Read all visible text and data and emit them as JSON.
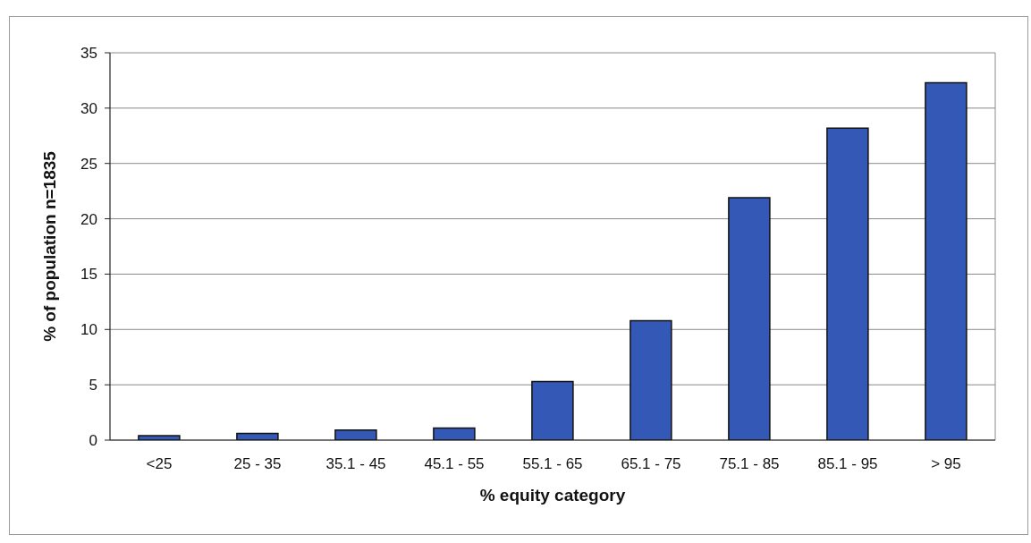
{
  "chart_data": {
    "type": "bar",
    "xlabel": "% equity category",
    "ylabel": "% of population n=1835",
    "categories": [
      "<25",
      "25 - 35",
      "35.1 - 45",
      "45.1 - 55",
      "55.1 - 65",
      "65.1 - 75",
      "75.1 - 85",
      "85.1 - 95",
      "> 95"
    ],
    "values": [
      0.4,
      0.6,
      0.9,
      1.1,
      5.3,
      10.8,
      21.9,
      28.2,
      32.3
    ],
    "color": "#3358b5",
    "ylim": [
      0,
      35
    ],
    "yticks": [
      0,
      5,
      10,
      15,
      20,
      25,
      30,
      35
    ],
    "grid": "y"
  }
}
